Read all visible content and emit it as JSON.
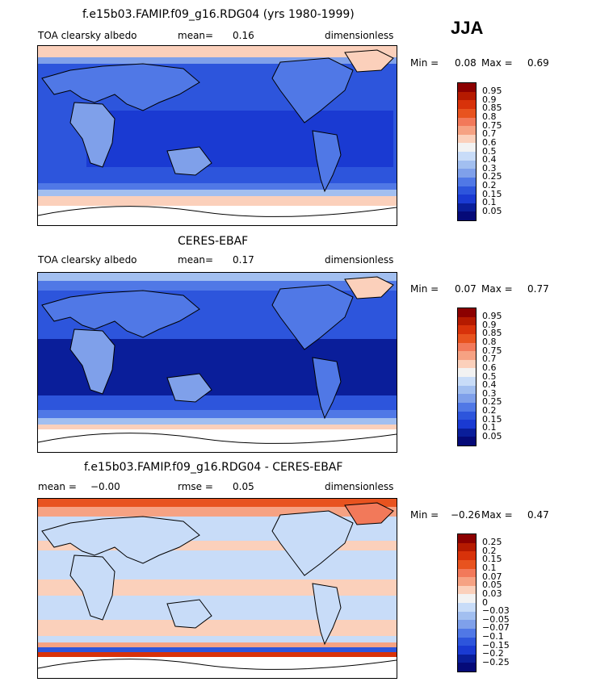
{
  "season": "JJA",
  "panels": [
    {
      "title": "f.e15b03.FAMIP.f09_g16.RDG04 (yrs 1980-1999)",
      "left_label": "TOA clearsky albedo",
      "stat_label": "mean=",
      "stat_value": "0.16",
      "extra_label": "",
      "extra_value": "",
      "units": "dimensionless",
      "min_label": "Min =",
      "min_value": "0.08",
      "max_label": "Max =",
      "max_value": "0.69",
      "levels": [
        "0.95",
        "0.9",
        "0.85",
        "0.8",
        "0.75",
        "0.7",
        "0.6",
        "0.5",
        "0.4",
        "0.3",
        "0.25",
        "0.2",
        "0.15",
        "0.1",
        "0.05"
      ]
    },
    {
      "title": "CERES-EBAF",
      "left_label": "TOA clearsky albedo",
      "stat_label": "mean=",
      "stat_value": "0.17",
      "extra_label": "",
      "extra_value": "",
      "units": "dimensionless",
      "min_label": "Min =",
      "min_value": "0.07",
      "max_label": "Max =",
      "max_value": "0.77",
      "levels": [
        "0.95",
        "0.9",
        "0.85",
        "0.8",
        "0.75",
        "0.7",
        "0.6",
        "0.5",
        "0.4",
        "0.3",
        "0.25",
        "0.2",
        "0.15",
        "0.1",
        "0.05"
      ]
    },
    {
      "title": "f.e15b03.FAMIP.f09_g16.RDG04 - CERES-EBAF",
      "left_label": "",
      "stat_label": "mean =",
      "stat_value": "−0.00",
      "extra_label": "rmse =",
      "extra_value": "0.05",
      "units": "dimensionless",
      "min_label": "Min =",
      "min_value": "−0.26",
      "max_label": "Max =",
      "max_value": "0.47",
      "levels": [
        "0.25",
        "0.2",
        "0.15",
        "0.1",
        "0.07",
        "0.05",
        "0.03",
        "0",
        "−0.03",
        "−0.05",
        "−0.07",
        "−0.1",
        "−0.15",
        "−0.2",
        "−0.25"
      ]
    }
  ],
  "palette": [
    "#8c0000",
    "#b51a00",
    "#d8320a",
    "#e8531f",
    "#f2795a",
    "#f6a283",
    "#fbd0bb",
    "#f2f2f2",
    "#c8dcf8",
    "#a2bff0",
    "#7fa0ea",
    "#5078e6",
    "#2d55dc",
    "#1a3ad2",
    "#0a1e9a",
    "#050a78"
  ]
}
